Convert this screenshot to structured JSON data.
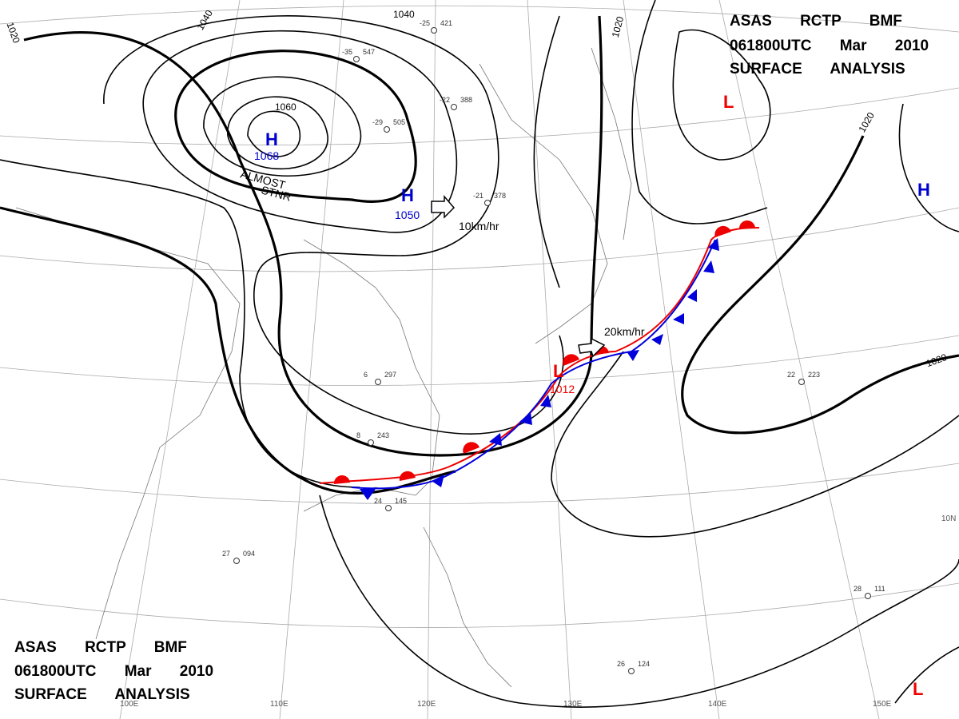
{
  "header": {
    "lines": [
      "ASAS RCTP BMF",
      "061800UTC Mar 2010",
      "SURFACE ANALYSIS"
    ]
  },
  "footer": {
    "lines": [
      "ASAS RCTP BMF",
      "061800UTC Mar 2010",
      "SURFACE ANALYSIS"
    ]
  },
  "pressure_centers": [
    {
      "symbol": "H",
      "value": "1068"
    },
    {
      "symbol": "H",
      "value": "1050"
    },
    {
      "symbol": "L",
      "value": "1012"
    },
    {
      "symbol": "L"
    },
    {
      "symbol": "H"
    },
    {
      "symbol": "L"
    }
  ],
  "isobar_labels": [
    "1020",
    "1040",
    "1060",
    "1040",
    "1020",
    "1020",
    "1020"
  ],
  "annotations": [
    "ALMOST",
    "STNR"
  ],
  "motions": [
    "10km/hr",
    "20km/hr"
  ],
  "longitude_labels": [
    "100E",
    "110E",
    "120E",
    "130E",
    "140E",
    "150E"
  ],
  "latitude_labels": [
    "10N"
  ],
  "stations": [
    {
      "temp": "-25",
      "pressure": "421"
    },
    {
      "temp": "-35",
      "pressure": "547"
    },
    {
      "temp": "-22",
      "pressure": "388"
    },
    {
      "temp": "-29",
      "pressure": "505"
    },
    {
      "temp": "-21",
      "pressure": "378"
    },
    {
      "temp": "6",
      "pressure": "297"
    },
    {
      "temp": "8",
      "pressure": "243"
    },
    {
      "temp": "24",
      "pressure": "145"
    },
    {
      "temp": "27",
      "pressure": "094"
    },
    {
      "temp": "22",
      "pressure": "223"
    },
    {
      "temp": "26",
      "pressure": "124"
    },
    {
      "temp": "28",
      "pressure": "111"
    }
  ]
}
